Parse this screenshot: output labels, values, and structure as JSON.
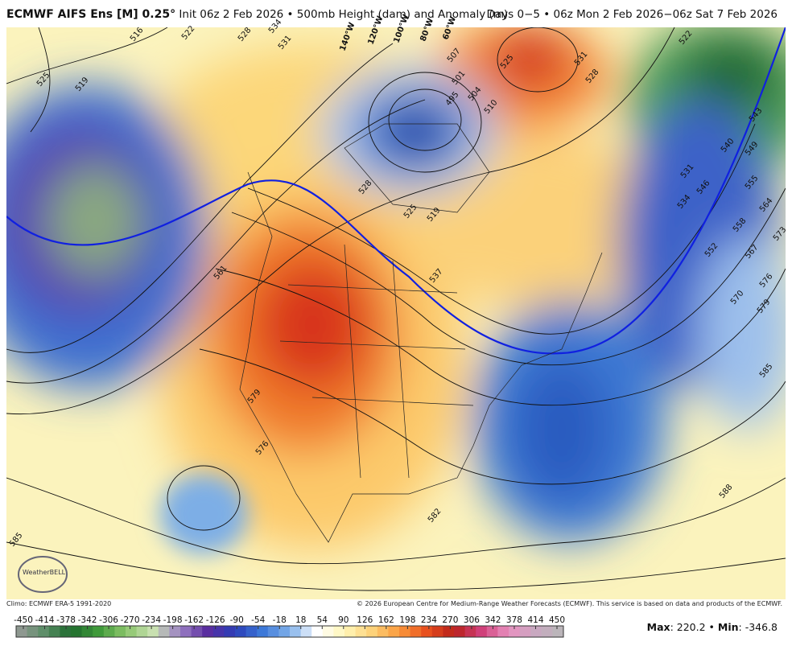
{
  "header": {
    "title": "ECMWF AIFS Ens [M] 0.25°",
    "subtitle": "Init 06z 2 Feb 2026 • 500mb Height (dam) and Anomaly (m)",
    "period": "Days 0−5 • 06z Mon 2 Feb 2026−06z Sat 7 Feb 2026"
  },
  "map": {
    "longitude_labels": [
      "140°W",
      "120°W",
      "100°W",
      "80°W",
      "60°W"
    ],
    "contour_labels": [
      516,
      525,
      519,
      522,
      528,
      534,
      531,
      507,
      501,
      495,
      504,
      510,
      525,
      531,
      528,
      522,
      543,
      549,
      540,
      555,
      546,
      531,
      534,
      564,
      558,
      573,
      552,
      567,
      576,
      570,
      579,
      585,
      588,
      528,
      519,
      525,
      537,
      561,
      579,
      576,
      582,
      585
    ]
  },
  "logo": "WeatherBELL",
  "footer": {
    "climo": "Climo: ECMWF ERA-5 1991-2020",
    "copyright": "© 2026 European Centre for Medium-Range Weather Forecasts (ECMWF). This service is based on data and products of the ECMWF."
  },
  "colorbar": {
    "ticks": [
      -450,
      -414,
      -378,
      -342,
      -306,
      -270,
      -234,
      -198,
      -162,
      -126,
      -90,
      -54,
      -18,
      18,
      54,
      90,
      126,
      162,
      198,
      234,
      270,
      306,
      342,
      378,
      414,
      450
    ]
  },
  "stats": {
    "max_label": "Max",
    "max": 220.2,
    "separator": "•",
    "min_label": "Min",
    "min": -346.8
  }
}
